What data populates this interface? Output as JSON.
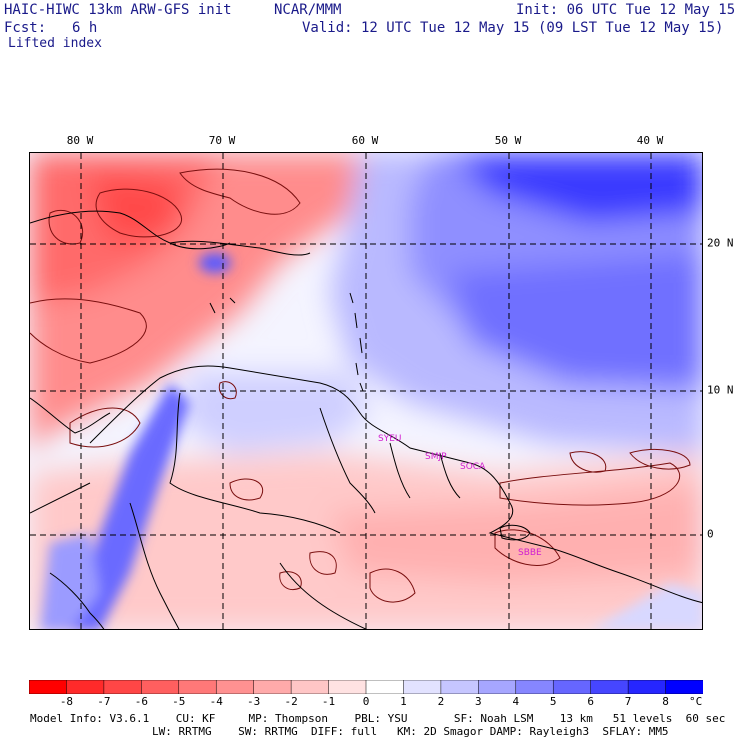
{
  "header": {
    "model_title": "HAIC-HIWC 13km ARW-GFS init",
    "org": "NCAR/MMM",
    "init_time": "Init: 06 UTC Tue 12 May 15",
    "fcst_label": "Fcst:",
    "fcst_value": "6 h",
    "valid_time": "Valid: 12 UTC Tue 12 May 15 (09 LST Tue 12 May 15)",
    "field_name": "Lifted index"
  },
  "map": {
    "longitude_labels": [
      "80 W",
      "70 W",
      "60 W",
      "50 W",
      "40 W"
    ],
    "latitude_labels": [
      "20 N",
      "10 N",
      "0"
    ],
    "stations": [
      "SYEU",
      "SMJP",
      "SOCA",
      "SBBE"
    ],
    "colors": {
      "coast": "#000000",
      "grid": "#000000",
      "contour": "#7a0f0f",
      "station": "#d020d0"
    }
  },
  "colorbar": {
    "ticks": [
      "-8",
      "-7",
      "-6",
      "-5",
      "-4",
      "-3",
      "-2",
      "-1",
      "0",
      "1",
      "2",
      "3",
      "4",
      "5",
      "6",
      "7",
      "8"
    ],
    "unit": "°C",
    "colors": [
      "#ff0000",
      "#ff2a2a",
      "#ff4646",
      "#ff5f5f",
      "#ff7878",
      "#ff9191",
      "#ffaaaa",
      "#ffc6c6",
      "#ffe2e2",
      "#ffffff",
      "#e2e2ff",
      "#c6c6ff",
      "#a6a6ff",
      "#8686ff",
      "#6666ff",
      "#4646ff",
      "#2626ff",
      "#0000ff"
    ]
  },
  "footer": {
    "line1": "Model Info: V3.6.1    CU: KF     MP: Thompson    PBL: YSU       SF: Noah LSM    13 km   51 levels  60 sec",
    "line2": "LW: RRTMG    SW: RRTMG  DIFF: full   KM: 2D Smagor DAMP: Rayleigh3  SFLAY: MM5"
  }
}
